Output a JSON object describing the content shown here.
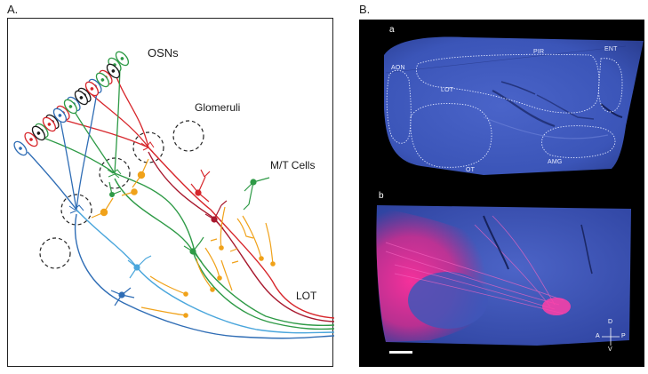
{
  "panel_a": {
    "label": "A.",
    "labels": {
      "osns": "OSNs",
      "glomeruli": "Glomeruli",
      "mt_cells": "M/T Cells",
      "lot": "LOT"
    },
    "colors": {
      "red": "#d7262b",
      "green": "#2e9a46",
      "blue": "#2f6db5",
      "black": "#1a1a1a",
      "orange": "#f0a21a",
      "light_blue": "#4aa6dc",
      "dark_red": "#a8192e"
    }
  },
  "panel_b": {
    "label": "B.",
    "sub_a": {
      "label": "a",
      "regions": [
        "AON",
        "PIR",
        "ENT",
        "LOT",
        "OT",
        "AMG"
      ]
    },
    "sub_b": {
      "label": "b",
      "compass": {
        "d": "D",
        "a": "A",
        "p": "P",
        "v": "V"
      }
    }
  }
}
